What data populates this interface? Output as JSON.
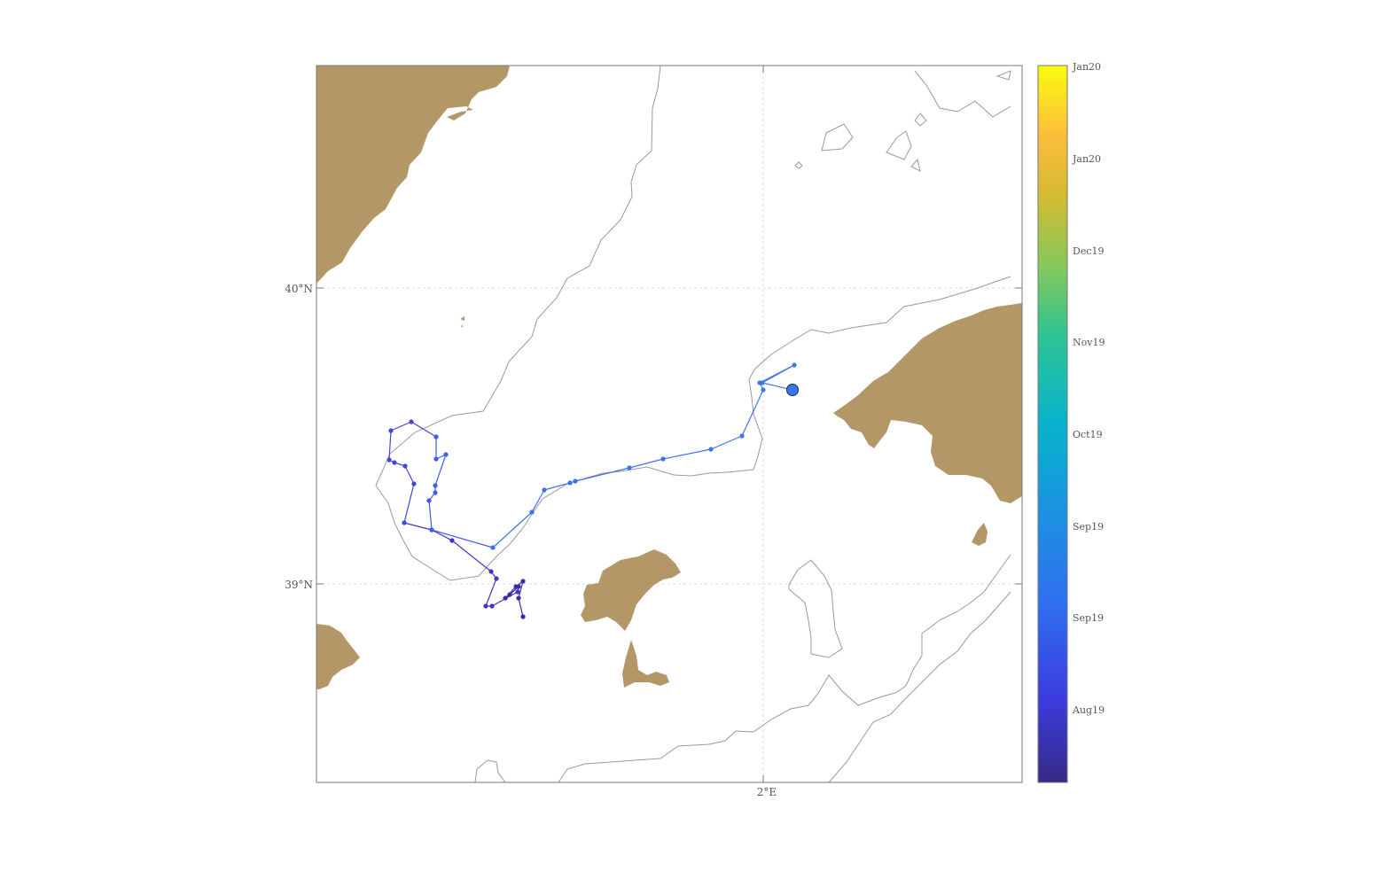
{
  "map": {
    "axes": {
      "lat_ticks": [
        {
          "value": 40,
          "label": "40°N"
        },
        {
          "value": 39,
          "label": "39°N"
        }
      ],
      "lon_ticks": [
        {
          "value": 2,
          "label": "2°E"
        }
      ]
    },
    "colors": {
      "land": "#b39766",
      "isobath": "#9a9a9a",
      "last_position": "#3a78e8"
    },
    "colorbar": {
      "colormap": "parula",
      "labels": [
        "Jan20",
        "Jan20",
        "Dec19",
        "Nov19",
        "Oct19",
        "Sep19",
        "Sep19",
        "Aug19"
      ]
    }
  }
}
